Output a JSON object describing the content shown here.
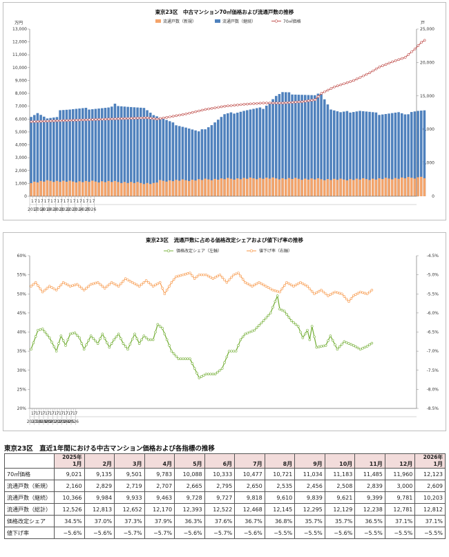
{
  "chart_data": [
    {
      "type": "bar+line",
      "title": "東京23区　中古マンション70㎡価格および流通戸数の推移",
      "left_unit": "万円",
      "right_unit": "戸",
      "legend": [
        "流通戸数（新規）",
        "流通戸数（継続）",
        "70㎡価格"
      ],
      "left_ticks": [
        "0",
        "1,000",
        "2,000",
        "3,000",
        "4,000",
        "5,000",
        "6,000",
        "7,000",
        "8,000",
        "9,000",
        "10,000",
        "11,000",
        "12,000",
        "13,000"
      ],
      "right_ticks": [
        "0",
        "5,000",
        "10,000",
        "15,000",
        "20,000",
        "25,000"
      ],
      "ylim_left": [
        0,
        13000
      ],
      "ylim_right": [
        0,
        25000
      ],
      "x_month_labels": [
        "1",
        "7",
        "1",
        "7",
        "1",
        "7",
        "1",
        "7",
        "1",
        "7",
        "1",
        "7",
        "1",
        "7",
        "1",
        "7",
        "1",
        "7",
        "1",
        "7"
      ],
      "years": [
        "2017",
        "2018",
        "2019",
        "2020",
        "2021",
        "2022",
        "2023",
        "2024",
        "2025",
        "2026"
      ],
      "price_anchors": [
        [
          0,
          5800
        ],
        [
          12,
          5900
        ],
        [
          24,
          6000
        ],
        [
          36,
          6100
        ],
        [
          39,
          6000
        ],
        [
          48,
          6400
        ],
        [
          54,
          6750
        ],
        [
          60,
          7000
        ],
        [
          66,
          7150
        ],
        [
          72,
          7250
        ],
        [
          78,
          7250
        ],
        [
          84,
          7350
        ],
        [
          88,
          7500
        ],
        [
          90,
          8000
        ],
        [
          94,
          8500
        ],
        [
          100,
          9000
        ],
        [
          105,
          9600
        ],
        [
          108,
          10050
        ],
        [
          112,
          10450
        ],
        [
          116,
          10800
        ],
        [
          119,
          11450
        ],
        [
          121,
          11960
        ],
        [
          122,
          12123
        ]
      ],
      "new_anchors": [
        [
          0,
          2100
        ],
        [
          6,
          2300
        ],
        [
          12,
          2200
        ],
        [
          24,
          2200
        ],
        [
          38,
          1900
        ],
        [
          40,
          2300
        ],
        [
          48,
          2400
        ],
        [
          60,
          2600
        ],
        [
          72,
          2700
        ],
        [
          84,
          2600
        ],
        [
          96,
          2500
        ],
        [
          108,
          2600
        ],
        [
          120,
          2800
        ],
        [
          121,
          3000
        ],
        [
          122,
          2609
        ]
      ],
      "total_anchors": [
        [
          0,
          12000
        ],
        [
          2,
          12500
        ],
        [
          5,
          11600
        ],
        [
          8,
          11700
        ],
        [
          9,
          13000
        ],
        [
          12,
          13000
        ],
        [
          24,
          13200
        ],
        [
          25,
          13300
        ],
        [
          26,
          13700
        ],
        [
          30,
          13400
        ],
        [
          36,
          13000
        ],
        [
          38,
          12200
        ],
        [
          44,
          10900
        ],
        [
          48,
          10300
        ],
        [
          52,
          9600
        ],
        [
          56,
          10700
        ],
        [
          60,
          12200
        ],
        [
          66,
          12800
        ],
        [
          72,
          13200
        ],
        [
          76,
          15000
        ],
        [
          78,
          15500
        ],
        [
          82,
          15300
        ],
        [
          88,
          15000
        ],
        [
          90,
          15400
        ],
        [
          93,
          13000
        ],
        [
          96,
          12500
        ],
        [
          102,
          12800
        ],
        [
          108,
          12300
        ],
        [
          114,
          12500
        ],
        [
          116,
          12100
        ],
        [
          118,
          12700
        ],
        [
          120,
          12800
        ],
        [
          122,
          12812
        ]
      ]
    },
    {
      "type": "line",
      "title": "東京23区　流通戸数に占める価格改定シェアおよび値下げ率の推移",
      "legend": [
        "価格改定シェア（左軸）",
        "値下げ率（右軸）"
      ],
      "left_ticks": [
        "20%",
        "25%",
        "30%",
        "35%",
        "40%",
        "45%",
        "50%",
        "55%",
        "60%"
      ],
      "right_ticks": [
        "-4.5%",
        "-5.0%",
        "-5.5%",
        "-6.0%",
        "-6.5%",
        "-7.0%",
        "-7.5%",
        "-8.0%",
        "-8.5%"
      ],
      "ylim_left": [
        20,
        60
      ],
      "ylim_right": [
        -8.5,
        -4.5
      ],
      "x_month_labels": [
        "1",
        "7",
        "1",
        "7",
        "1",
        "7",
        "1",
        "7",
        "1",
        "7",
        "1",
        "7",
        "1",
        "7",
        "1",
        "7",
        "1",
        "7",
        "1",
        "7"
      ],
      "years": [
        "2017",
        "2018",
        "2019",
        "2020",
        "2021",
        "2022",
        "2023",
        "2024",
        "2025",
        "2026"
      ],
      "share_anchors": [
        [
          0,
          35.5
        ],
        [
          3,
          40.5
        ],
        [
          5,
          40.8
        ],
        [
          8,
          38.5
        ],
        [
          11,
          35
        ],
        [
          13,
          39
        ],
        [
          15,
          36.5
        ],
        [
          17,
          39.5
        ],
        [
          19,
          39.8
        ],
        [
          21,
          38.5
        ],
        [
          23,
          35.5
        ],
        [
          26,
          39
        ],
        [
          29,
          37
        ],
        [
          31,
          39.5
        ],
        [
          34,
          36
        ],
        [
          36,
          38
        ],
        [
          38,
          39.5
        ],
        [
          40,
          37
        ],
        [
          42,
          35.5
        ],
        [
          45,
          39.5
        ],
        [
          47,
          37
        ],
        [
          49,
          39
        ],
        [
          51,
          38
        ],
        [
          53,
          38
        ],
        [
          55,
          42
        ],
        [
          57,
          41
        ],
        [
          59,
          38
        ],
        [
          61,
          35
        ],
        [
          64,
          33
        ],
        [
          69,
          33
        ],
        [
          73,
          28
        ],
        [
          76,
          29
        ],
        [
          80,
          29
        ],
        [
          83,
          30.5
        ],
        [
          86,
          35
        ],
        [
          89,
          35
        ],
        [
          91,
          38
        ],
        [
          93,
          39.5
        ],
        [
          97,
          40.5
        ],
        [
          101,
          43
        ],
        [
          104,
          45
        ],
        [
          107,
          49.5
        ],
        [
          108,
          46
        ],
        [
          110,
          45.5
        ],
        [
          113,
          43
        ],
        [
          116,
          41.5
        ],
        [
          118,
          38.5
        ],
        [
          120,
          40.5
        ],
        [
          121,
          38
        ],
        [
          122,
          41.5
        ],
        [
          124,
          36
        ],
        [
          128,
          36.5
        ],
        [
          130,
          39
        ],
        [
          133,
          35.5
        ],
        [
          136,
          37.5
        ],
        [
          140,
          36.5
        ],
        [
          143,
          35.5
        ],
        [
          146,
          36.3
        ],
        [
          148,
          37.1
        ]
      ],
      "drop_anchors": [
        [
          0,
          -5.3
        ],
        [
          2,
          -5.2
        ],
        [
          5,
          -5.45
        ],
        [
          8,
          -5.3
        ],
        [
          11,
          -5.4
        ],
        [
          14,
          -5.2
        ],
        [
          17,
          -5.3
        ],
        [
          20,
          -5.25
        ],
        [
          23,
          -5.4
        ],
        [
          26,
          -5.25
        ],
        [
          29,
          -5.2
        ],
        [
          32,
          -5.35
        ],
        [
          35,
          -5.2
        ],
        [
          38,
          -5.3
        ],
        [
          41,
          -5.1
        ],
        [
          44,
          -5.2
        ],
        [
          47,
          -5.3
        ],
        [
          50,
          -5.15
        ],
        [
          53,
          -5.3
        ],
        [
          56,
          -5.2
        ],
        [
          58,
          -5.5
        ],
        [
          61,
          -5.2
        ],
        [
          63,
          -5.05
        ],
        [
          66,
          -5.0
        ],
        [
          69,
          -4.95
        ],
        [
          71,
          -5.1
        ],
        [
          73,
          -5.0
        ],
        [
          76,
          -5.0
        ],
        [
          79,
          -5.1
        ],
        [
          82,
          -5.0
        ],
        [
          85,
          -5.2
        ],
        [
          88,
          -5.0
        ],
        [
          90,
          -4.95
        ],
        [
          93,
          -5.2
        ],
        [
          96,
          -5.3
        ],
        [
          99,
          -5.2
        ],
        [
          102,
          -5.3
        ],
        [
          105,
          -5.4
        ],
        [
          108,
          -5.45
        ],
        [
          111,
          -5.2
        ],
        [
          114,
          -5.3
        ],
        [
          117,
          -5.2
        ],
        [
          120,
          -5.3
        ],
        [
          123,
          -5.5
        ],
        [
          126,
          -5.4
        ],
        [
          129,
          -5.55
        ],
        [
          132,
          -5.45
        ],
        [
          135,
          -5.5
        ],
        [
          138,
          -5.7
        ],
        [
          140,
          -5.55
        ],
        [
          143,
          -5.45
        ],
        [
          146,
          -5.5
        ],
        [
          148,
          -5.4
        ]
      ]
    }
  ],
  "table": {
    "title": "東京23区　直近1年間における中古マンション価格および各指標の推移",
    "columns": [
      {
        "year": "2025年",
        "month": "1月"
      },
      {
        "year": "",
        "month": "2月"
      },
      {
        "year": "",
        "month": "3月"
      },
      {
        "year": "",
        "month": "4月"
      },
      {
        "year": "",
        "month": "5月"
      },
      {
        "year": "",
        "month": "6月"
      },
      {
        "year": "",
        "month": "7月"
      },
      {
        "year": "",
        "month": "8月"
      },
      {
        "year": "",
        "month": "9月"
      },
      {
        "year": "",
        "month": "10月"
      },
      {
        "year": "",
        "month": "11月"
      },
      {
        "year": "",
        "month": "12月"
      },
      {
        "year": "2026年",
        "month": "1月"
      }
    ],
    "rows": [
      {
        "label": "70㎡価格",
        "values": [
          "9,021",
          "9,135",
          "9,501",
          "9,783",
          "10,088",
          "10,333",
          "10,477",
          "10,721",
          "11,034",
          "11,183",
          "11,485",
          "11,960",
          "12,123"
        ]
      },
      {
        "label": "流通戸数（新規）",
        "values": [
          "2,160",
          "2,829",
          "2,719",
          "2,707",
          "2,665",
          "2,795",
          "2,650",
          "2,535",
          "2,456",
          "2,508",
          "2,839",
          "3,000",
          "2,609"
        ]
      },
      {
        "label": "流通戸数（継続）",
        "values": [
          "10,366",
          "9,984",
          "9,933",
          "9,463",
          "9,728",
          "9,727",
          "9,818",
          "9,610",
          "9,839",
          "9,621",
          "9,399",
          "9,781",
          "10,203"
        ]
      },
      {
        "label": "流通戸数（総計）",
        "values": [
          "12,526",
          "12,813",
          "12,652",
          "12,170",
          "12,393",
          "12,522",
          "12,468",
          "12,145",
          "12,295",
          "12,129",
          "12,238",
          "12,781",
          "12,812"
        ]
      },
      {
        "label": "価格改定シェア",
        "values": [
          "34.5%",
          "37.0%",
          "37.3%",
          "37.9%",
          "36.3%",
          "37.6%",
          "36.7%",
          "36.8%",
          "35.7%",
          "35.7%",
          "36.5%",
          "37.1%",
          "37.1%"
        ]
      },
      {
        "label": "値下げ率",
        "values": [
          "−5.6%",
          "−5.6%",
          "−5.7%",
          "−5.7%",
          "−5.6%",
          "−5.7%",
          "−5.6%",
          "−5.5%",
          "−5.5%",
          "−5.6%",
          "−5.5%",
          "−5.5%",
          "−5.5%"
        ]
      }
    ]
  },
  "colors": {
    "bar_new": "#f4a46a",
    "bar_total": "#4f81bd",
    "price_line": "#c0504d",
    "share_line": "#77b03b",
    "drop_line": "#f79646",
    "table_header": "#f2dcdb"
  }
}
